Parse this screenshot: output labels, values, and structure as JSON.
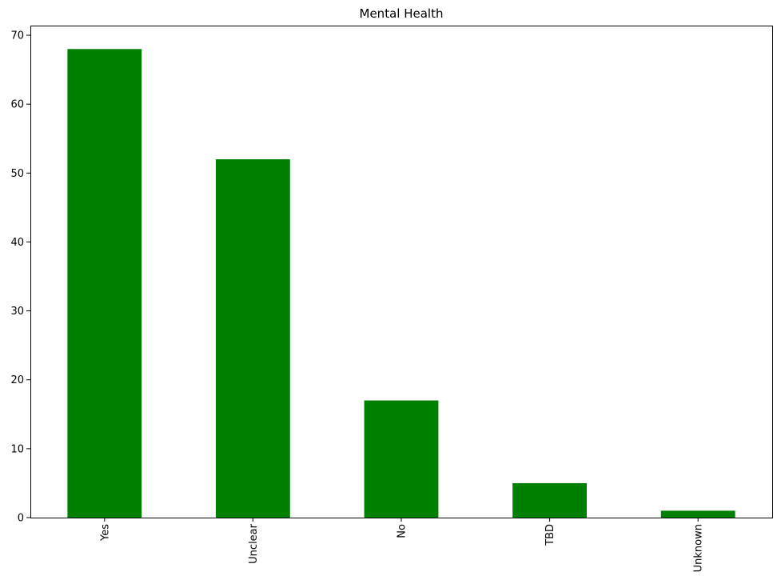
{
  "chart_data": {
    "type": "bar",
    "title": "Mental Health",
    "xlabel": "",
    "ylabel": "",
    "categories": [
      "Yes",
      "Unclear",
      "No",
      "TBD",
      "Unknown"
    ],
    "values": [
      68,
      52,
      17,
      5,
      1
    ],
    "ylim": [
      0,
      71.4
    ],
    "yticks": [
      0,
      10,
      20,
      30,
      40,
      50,
      60,
      70
    ],
    "bar_color": "#008000",
    "grid": false,
    "legend": "none",
    "xtick_rotation": "vertical"
  }
}
